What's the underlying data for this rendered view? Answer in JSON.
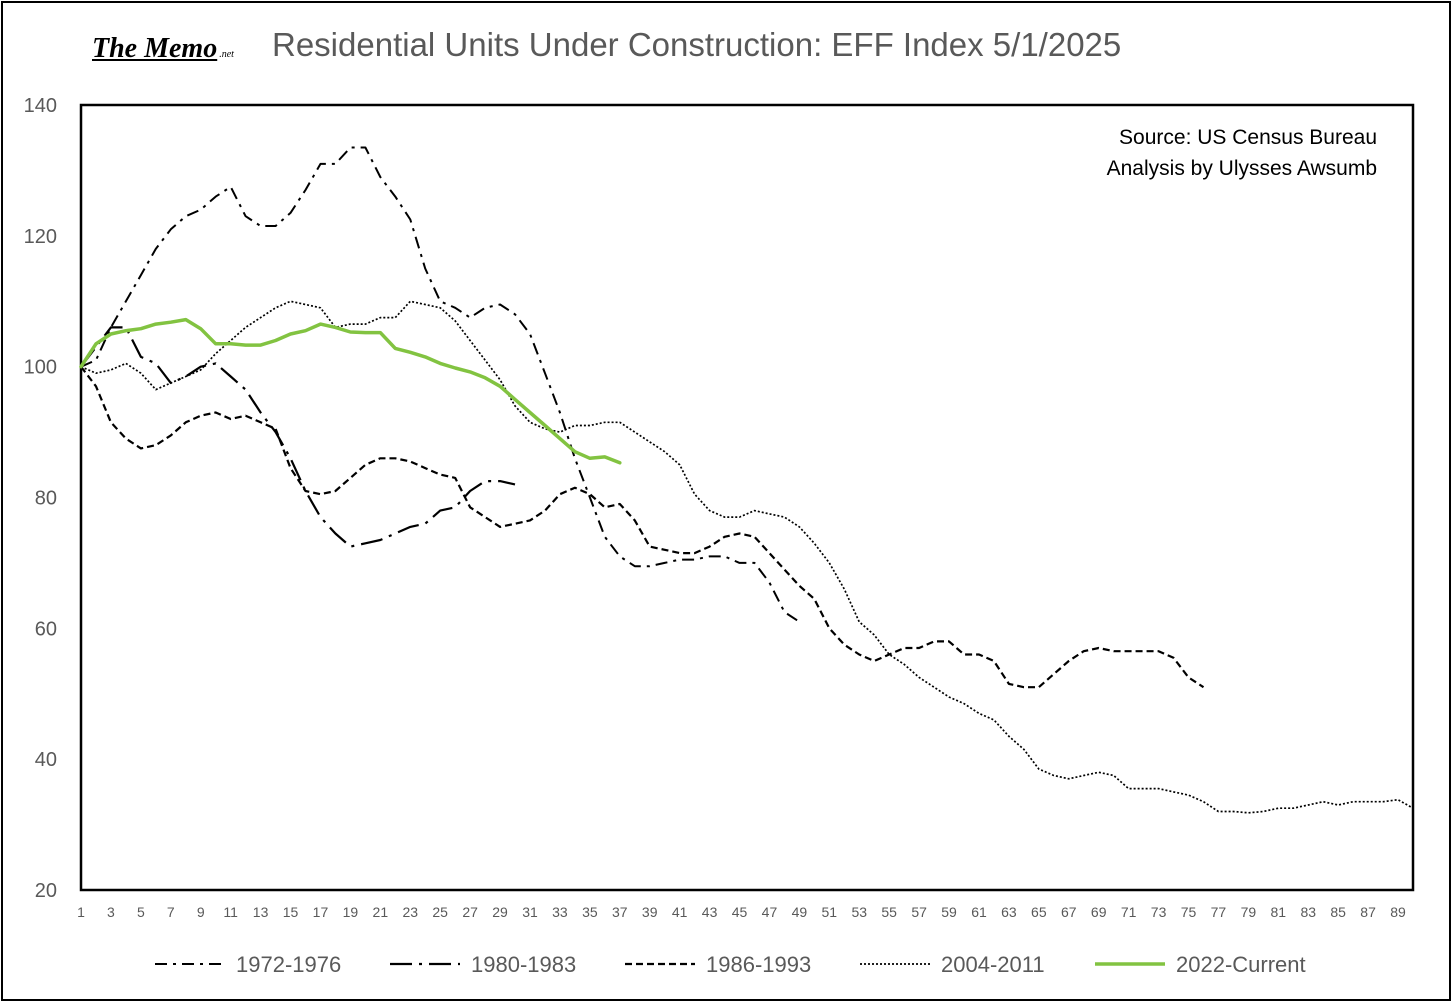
{
  "header": {
    "logo_text": "The Memo",
    "logo_suffix": ".net"
  },
  "chart_data": {
    "type": "line",
    "title": "Residential Units Under Construction: EFF Index 5/1/2025",
    "xlabel": "",
    "ylabel": "",
    "ylim": [
      20,
      140
    ],
    "xlim": [
      1,
      90
    ],
    "y_ticks": [
      20,
      40,
      60,
      80,
      100,
      120,
      140
    ],
    "x_ticks": [
      1,
      3,
      5,
      7,
      9,
      11,
      13,
      15,
      17,
      19,
      21,
      23,
      25,
      27,
      29,
      31,
      33,
      35,
      37,
      39,
      41,
      43,
      45,
      47,
      49,
      51,
      53,
      55,
      57,
      59,
      61,
      63,
      65,
      67,
      69,
      71,
      73,
      75,
      77,
      79,
      81,
      83,
      85,
      87,
      89
    ],
    "annotations": [
      "Source: US Census Bureau",
      "Analysis by Ulysses Awsumb"
    ],
    "grid": false,
    "legend_position": "bottom",
    "series": [
      {
        "name": "1972-1976",
        "style": "dash-dot",
        "color": "#000000",
        "x": [
          1,
          2,
          3,
          4,
          5,
          6,
          7,
          8,
          9,
          10,
          11,
          12,
          13,
          14,
          15,
          16,
          17,
          18,
          19,
          20,
          21,
          22,
          23,
          24,
          25,
          26,
          27,
          28,
          29,
          30,
          31,
          32,
          33,
          34,
          35,
          36,
          37,
          38,
          39,
          40,
          41,
          42,
          43,
          44,
          45,
          46,
          47,
          48,
          49
        ],
        "values": [
          100,
          101,
          106,
          110,
          114,
          118,
          121,
          123,
          124,
          126,
          127.5,
          123,
          121.5,
          121.5,
          123.5,
          127,
          131,
          131,
          133.5,
          133.5,
          129,
          126,
          122.5,
          115,
          110,
          109,
          107.5,
          109,
          109.5,
          108,
          105,
          99,
          93,
          86,
          80,
          74,
          71,
          69.5,
          69.5,
          70,
          70.5,
          70.5,
          71,
          71,
          70,
          70,
          67,
          62.5,
          61
        ]
      },
      {
        "name": "1980-1983",
        "style": "long-dash-dot",
        "color": "#000000",
        "x": [
          1,
          2,
          3,
          4,
          5,
          6,
          7,
          8,
          9,
          10,
          11,
          12,
          13,
          14,
          15,
          16,
          17,
          18,
          19,
          20,
          21,
          22,
          23,
          24,
          25,
          26,
          27,
          28,
          29,
          30
        ],
        "values": [
          100,
          103,
          106,
          106,
          101.5,
          100.5,
          97.5,
          98.5,
          100,
          100.5,
          98.5,
          96.5,
          93,
          90,
          86,
          81,
          77,
          74.5,
          72.5,
          73,
          73.5,
          74.5,
          75.5,
          76,
          78,
          78.5,
          81,
          82.5,
          82.5,
          82
        ]
      },
      {
        "name": "1986-1993",
        "style": "dashed",
        "color": "#000000",
        "x": [
          1,
          2,
          3,
          4,
          5,
          6,
          7,
          8,
          9,
          10,
          11,
          12,
          13,
          14,
          15,
          16,
          17,
          18,
          19,
          20,
          21,
          22,
          23,
          24,
          25,
          26,
          27,
          28,
          29,
          30,
          31,
          32,
          33,
          34,
          35,
          36,
          37,
          38,
          39,
          40,
          41,
          42,
          43,
          44,
          45,
          46,
          47,
          48,
          49,
          50,
          51,
          52,
          53,
          54,
          55,
          56,
          57,
          58,
          59,
          60,
          61,
          62,
          63,
          64,
          65,
          66,
          67,
          68,
          69,
          70,
          71,
          72,
          73,
          74,
          75,
          76
        ],
        "values": [
          100,
          97,
          91.5,
          89,
          87.5,
          88,
          89.5,
          91.5,
          92.5,
          93,
          92,
          92.5,
          91.5,
          90.5,
          84.5,
          81,
          80.5,
          81,
          83,
          85,
          86,
          86,
          85.5,
          84.5,
          83.5,
          83,
          78.5,
          77,
          75.5,
          76,
          76.5,
          78,
          80.5,
          81.5,
          80.5,
          78.5,
          79,
          76.5,
          72.5,
          72,
          71.5,
          71.5,
          72.5,
          74,
          74.5,
          74,
          71.5,
          69,
          66.5,
          64.5,
          60,
          57.5,
          56,
          55,
          56,
          57,
          57,
          58,
          58,
          56,
          56,
          55,
          51.5,
          51,
          51,
          53,
          55,
          56.5,
          57,
          56.5,
          56.5,
          56.5,
          56.5,
          55.5,
          52.5,
          51
        ]
      },
      {
        "name": "2004-2011",
        "style": "dotted",
        "color": "#000000",
        "x": [
          1,
          2,
          3,
          4,
          5,
          6,
          7,
          8,
          9,
          10,
          11,
          12,
          13,
          14,
          15,
          16,
          17,
          18,
          19,
          20,
          21,
          22,
          23,
          24,
          25,
          26,
          27,
          28,
          29,
          30,
          31,
          32,
          33,
          34,
          35,
          36,
          37,
          38,
          39,
          40,
          41,
          42,
          43,
          44,
          45,
          46,
          47,
          48,
          49,
          50,
          51,
          52,
          53,
          54,
          55,
          56,
          57,
          58,
          59,
          60,
          61,
          62,
          63,
          64,
          65,
          66,
          67,
          68,
          69,
          70,
          71,
          72,
          73,
          74,
          75,
          76,
          77,
          78,
          79,
          80,
          81,
          82,
          83,
          84,
          85,
          86,
          87,
          88,
          89,
          90
        ],
        "values": [
          100,
          99,
          99.5,
          100.5,
          99,
          96.5,
          97.5,
          98.5,
          99.5,
          102,
          104,
          106,
          107.5,
          109,
          110,
          109.5,
          109,
          106,
          106.5,
          106.5,
          107.5,
          107.5,
          110,
          109.5,
          109,
          107,
          104,
          101,
          98,
          94,
          91.5,
          90.5,
          90,
          91,
          91,
          91.5,
          91.5,
          90,
          88.5,
          87,
          85,
          80.5,
          78,
          77,
          77,
          78,
          77.5,
          77,
          75.5,
          73,
          70,
          66,
          61,
          59,
          56,
          54.5,
          52.5,
          51,
          49.5,
          48.5,
          47,
          46,
          43.5,
          41.5,
          38.5,
          37.5,
          37,
          37.5,
          38,
          37.5,
          35.5,
          35.5,
          35.5,
          35,
          34.5,
          33.5,
          32,
          32,
          31.8,
          32,
          32.5,
          32.5,
          33,
          33.5,
          33,
          33.5,
          33.5,
          33.5,
          33.8,
          32.5
        ]
      },
      {
        "name": "2022-Current",
        "style": "solid",
        "color": "#82C341",
        "x": [
          1,
          2,
          3,
          4,
          5,
          6,
          7,
          8,
          9,
          10,
          11,
          12,
          13,
          14,
          15,
          16,
          17,
          18,
          19,
          20,
          21,
          22,
          23,
          24,
          25,
          26,
          27,
          28,
          29,
          30,
          31,
          32,
          33,
          34,
          35,
          36,
          37
        ],
        "values": [
          100,
          103.5,
          105,
          105.5,
          105.8,
          106.5,
          106.8,
          107.2,
          105.8,
          103.5,
          103.5,
          103.3,
          103.3,
          104,
          105,
          105.5,
          106.5,
          106,
          105.3,
          105.2,
          105.2,
          102.8,
          102.2,
          101.5,
          100.5,
          99.8,
          99.2,
          98.3,
          97,
          95,
          93,
          91,
          89,
          87,
          86,
          86.2,
          85.3
        ]
      }
    ]
  }
}
